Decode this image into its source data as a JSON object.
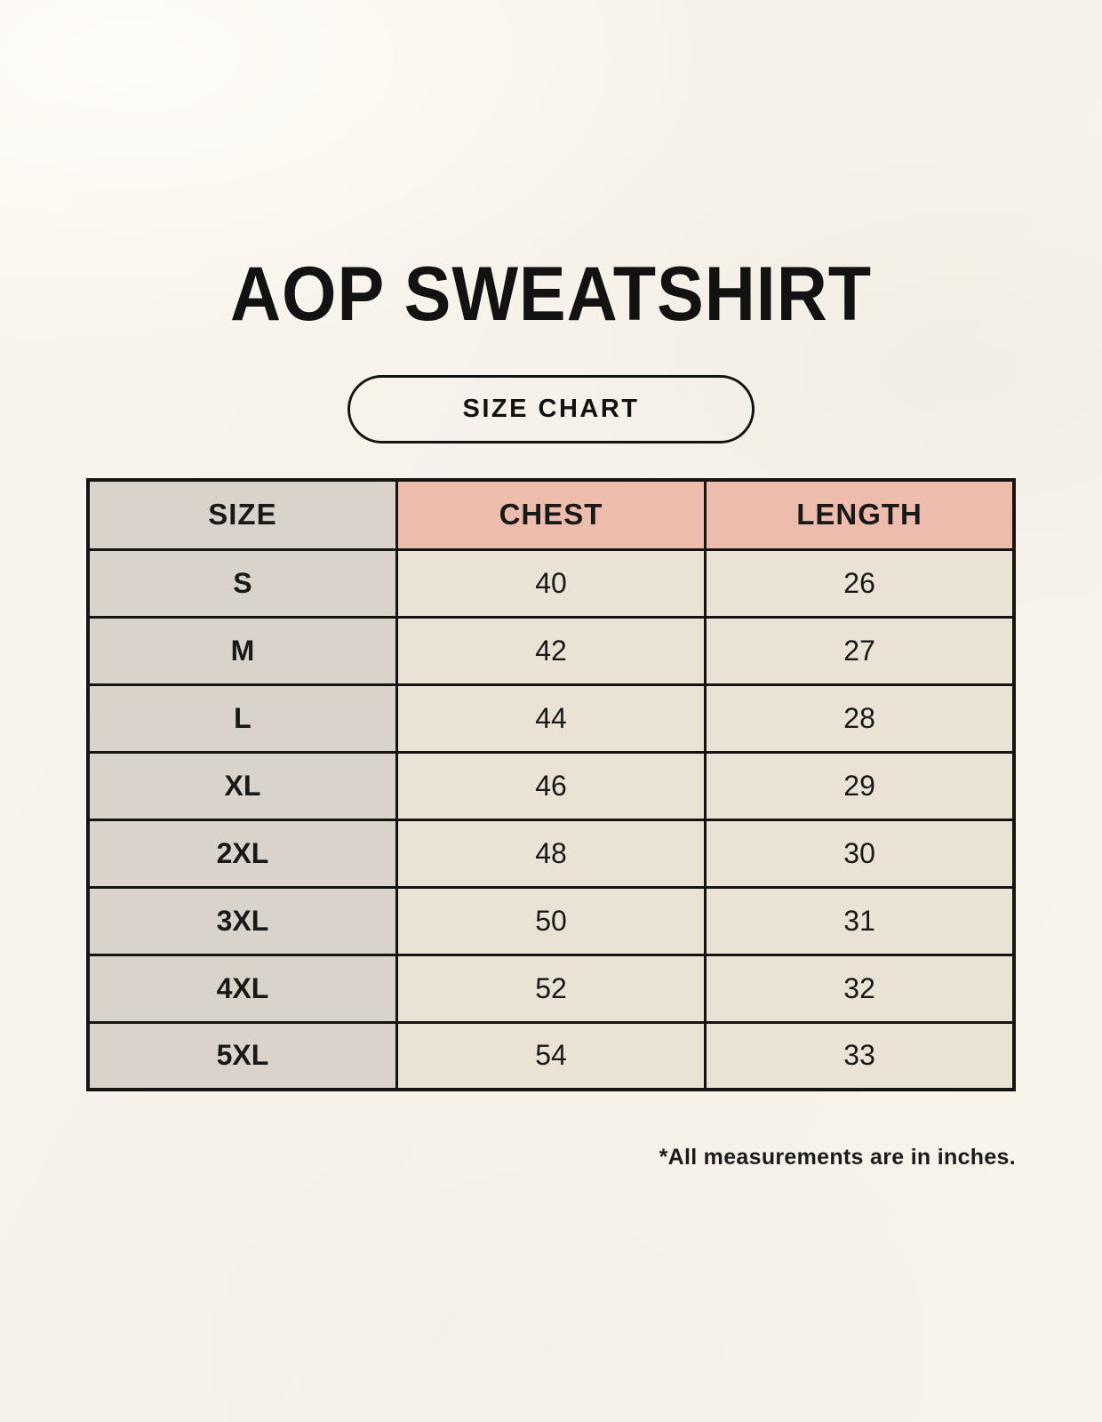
{
  "page": {
    "title": "AOP SWEATSHIRT",
    "badge_label": "SIZE CHART",
    "footnote": "*All measurements are in inches."
  },
  "chart_data": {
    "type": "table",
    "title": "AOP SWEATSHIRT",
    "subtitle": "SIZE CHART",
    "units": "inches",
    "footnote": "*All measurements are in inches.",
    "columns": [
      "SIZE",
      "CHEST",
      "LENGTH"
    ],
    "rows": [
      {
        "size": "S",
        "chest": 40,
        "length": 26
      },
      {
        "size": "M",
        "chest": 42,
        "length": 27
      },
      {
        "size": "L",
        "chest": 44,
        "length": 28
      },
      {
        "size": "XL",
        "chest": 46,
        "length": 29
      },
      {
        "size": "2XL",
        "chest": 48,
        "length": 30
      },
      {
        "size": "3XL",
        "chest": 50,
        "length": 31
      },
      {
        "size": "4XL",
        "chest": 52,
        "length": 32
      },
      {
        "size": "5XL",
        "chest": 54,
        "length": 33
      }
    ]
  },
  "colors": {
    "bg": "#f7f3ec",
    "header_size_bg": "#dad3cb",
    "header_accent_bg": "#eebcad",
    "cell_size_bg": "#d9d3cb",
    "cell_value_bg": "#e9e2d5",
    "border": "#151413",
    "text": "#191919"
  }
}
